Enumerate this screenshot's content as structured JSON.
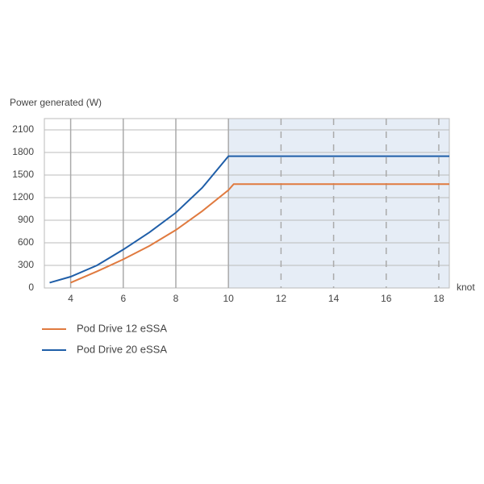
{
  "chart_data": {
    "type": "line",
    "y_label": "Power generated (W)",
    "x_label": "knot",
    "x": [
      3.2,
      4,
      5,
      6,
      7,
      8,
      9,
      10,
      10.2,
      18.4
    ],
    "series": [
      {
        "name": "Pod Drive 12 eSSA",
        "color": "#e07a3f",
        "values": [
          null,
          70,
          220,
          380,
          560,
          770,
          1020,
          1300,
          1380,
          1380
        ]
      },
      {
        "name": "Pod Drive 20 eSSA",
        "color": "#1f5ea8",
        "values": [
          70,
          150,
          300,
          510,
          740,
          1000,
          1330,
          1750,
          1750,
          1750
        ]
      }
    ],
    "xlim": [
      3,
      18.4
    ],
    "ylim": [
      0,
      2250
    ],
    "xticks": [
      4,
      6,
      8,
      10,
      12,
      14,
      16,
      18
    ],
    "yticks": [
      0,
      300,
      600,
      900,
      1200,
      1500,
      1800,
      2100
    ],
    "grid": true,
    "shade_from_x": 10,
    "shade_color": "#e6edf6"
  }
}
